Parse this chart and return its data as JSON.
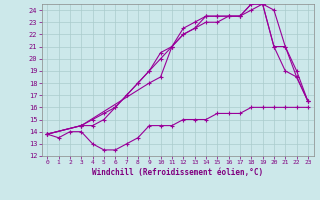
{
  "xlabel": "Windchill (Refroidissement éolien,°C)",
  "xlim": [
    -0.5,
    23.5
  ],
  "ylim": [
    12,
    24.5
  ],
  "yticks": [
    12,
    13,
    14,
    15,
    16,
    17,
    18,
    19,
    20,
    21,
    22,
    23,
    24
  ],
  "xticks": [
    0,
    1,
    2,
    3,
    4,
    5,
    6,
    7,
    8,
    9,
    10,
    11,
    12,
    13,
    14,
    15,
    16,
    17,
    18,
    19,
    20,
    21,
    22,
    23
  ],
  "bg_color": "#cce8ea",
  "grid_color": "#aacccc",
  "line_color": "#990099",
  "lines": [
    {
      "x": [
        0,
        1,
        2,
        3,
        4,
        5,
        6,
        7,
        8,
        9,
        10,
        11,
        12,
        13,
        14,
        15,
        16,
        17,
        18,
        19,
        20,
        21,
        22,
        23
      ],
      "y": [
        13.8,
        13.5,
        14.0,
        14.0,
        13.0,
        12.5,
        12.5,
        13.0,
        13.5,
        14.5,
        14.5,
        14.5,
        15.0,
        15.0,
        15.0,
        15.5,
        15.5,
        15.5,
        16.0,
        16.0,
        16.0,
        16.0,
        16.0,
        16.0
      ]
    },
    {
      "x": [
        0,
        3,
        4,
        5,
        6,
        7,
        8,
        9,
        10,
        11,
        12,
        13,
        14,
        15,
        16,
        17,
        18,
        19,
        20,
        21,
        22,
        23
      ],
      "y": [
        13.8,
        14.5,
        15.0,
        15.5,
        16.0,
        17.0,
        18.0,
        19.0,
        20.0,
        21.0,
        22.0,
        22.5,
        23.0,
        23.0,
        23.5,
        23.5,
        24.0,
        24.5,
        21.0,
        21.0,
        19.0,
        16.5
      ]
    },
    {
      "x": [
        0,
        3,
        4,
        5,
        6,
        7,
        8,
        9,
        10,
        11,
        12,
        13,
        14,
        15,
        16,
        17,
        18,
        19,
        20,
        21,
        22,
        23
      ],
      "y": [
        13.8,
        14.5,
        14.5,
        15.0,
        16.0,
        17.0,
        18.0,
        19.0,
        20.5,
        21.0,
        22.0,
        22.5,
        23.5,
        23.5,
        23.5,
        23.5,
        24.5,
        24.5,
        24.0,
        21.0,
        18.5,
        16.5
      ]
    },
    {
      "x": [
        0,
        3,
        9,
        10,
        11,
        12,
        13,
        14,
        15,
        16,
        17,
        18,
        19,
        20,
        21,
        22,
        23
      ],
      "y": [
        13.8,
        14.5,
        18.0,
        18.5,
        21.0,
        22.5,
        23.0,
        23.5,
        23.5,
        23.5,
        23.5,
        24.5,
        24.5,
        21.0,
        19.0,
        18.5,
        16.5
      ]
    }
  ]
}
